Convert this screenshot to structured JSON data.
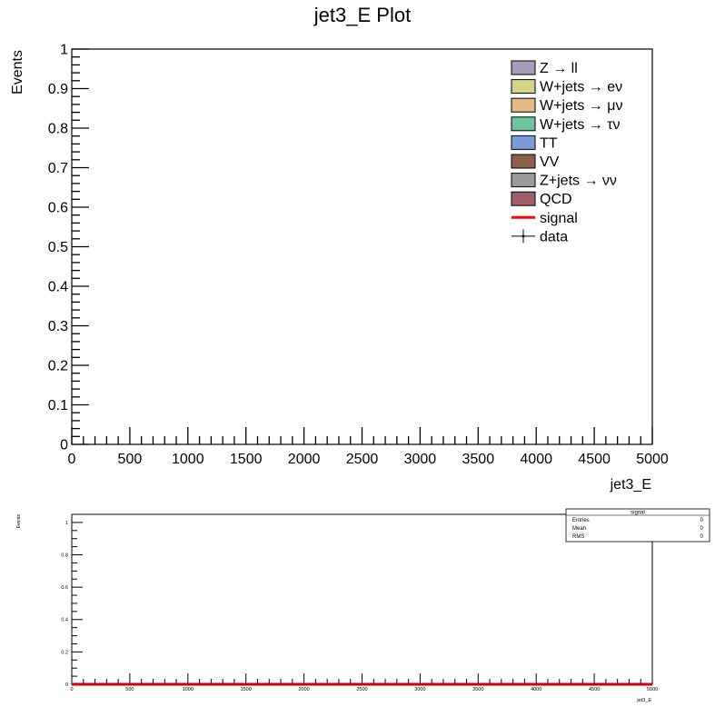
{
  "chart_data": [
    {
      "type": "bar",
      "title": "jet3_E Plot",
      "xlabel": "jet3_E",
      "ylabel": "Events",
      "xlim": [
        0,
        5000
      ],
      "ylim": [
        0,
        1
      ],
      "x_ticks": [
        "0",
        "500",
        "1000",
        "1500",
        "2000",
        "2500",
        "3000",
        "3500",
        "4000",
        "4500",
        "5000"
      ],
      "y_ticks": [
        "0",
        "0.1",
        "0.2",
        "0.3",
        "0.4",
        "0.5",
        "0.6",
        "0.7",
        "0.8",
        "0.9",
        "1"
      ],
      "grid": false,
      "legend_position": "top-right",
      "legend": [
        {
          "label": "Z → ll",
          "kind": "fill",
          "color": "#a59cbd"
        },
        {
          "label": "W+jets → eν",
          "kind": "fill",
          "color": "#d5d28a"
        },
        {
          "label": "W+jets → μν",
          "kind": "fill",
          "color": "#e3bb86"
        },
        {
          "label": "W+jets → τν",
          "kind": "fill",
          "color": "#6cc59c"
        },
        {
          "label": "TT",
          "kind": "fill",
          "color": "#7b9ad9"
        },
        {
          "label": "VV",
          "kind": "fill",
          "color": "#8c5f4c"
        },
        {
          "label": "Z+jets → νν",
          "kind": "fill",
          "color": "#9a9a9a"
        },
        {
          "label": "QCD",
          "kind": "fill",
          "color": "#9e5f6b"
        },
        {
          "label": "signal",
          "kind": "line",
          "color": "#ff0000"
        },
        {
          "label": "data",
          "kind": "marker",
          "color": "#000000"
        }
      ],
      "series": []
    },
    {
      "type": "line",
      "xlabel": "jet3_E",
      "ylabel": "Events",
      "xlim": [
        0,
        5000
      ],
      "ylim": [
        0,
        1.05
      ],
      "x_ticks": [
        "0",
        "500",
        "1000",
        "1500",
        "2000",
        "2500",
        "3000",
        "3500",
        "4000",
        "4500",
        "5000"
      ],
      "y_ticks": [
        "0",
        "0.2",
        "0.4",
        "0.6",
        "0.8",
        "1"
      ],
      "grid": false,
      "series": [
        {
          "name": "signal",
          "color": "#cc0000",
          "x": [
            0,
            5000
          ],
          "y": [
            0,
            0
          ]
        }
      ],
      "stats_box": {
        "title": "signal",
        "rows": [
          {
            "label": "Entries",
            "value": "0"
          },
          {
            "label": "Mean",
            "value": "0"
          },
          {
            "label": "RMS",
            "value": "0"
          }
        ]
      }
    }
  ]
}
